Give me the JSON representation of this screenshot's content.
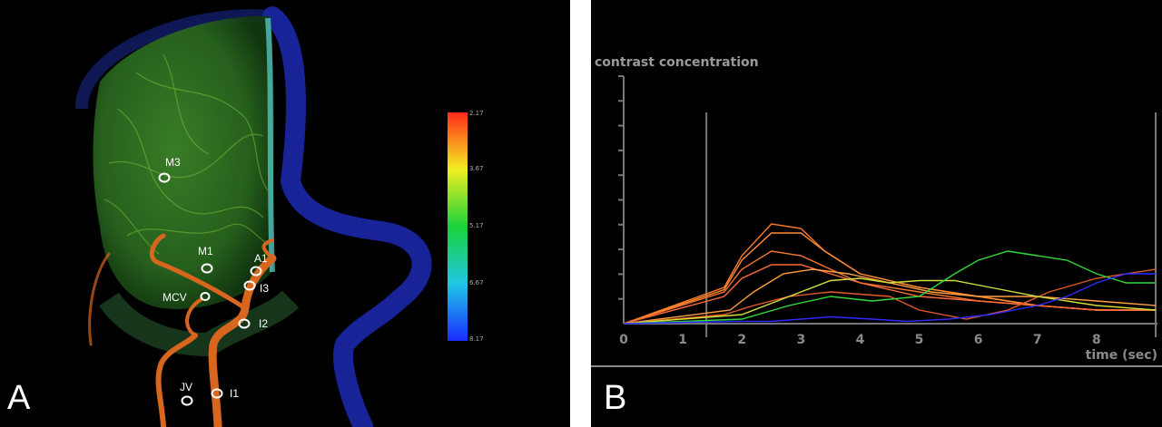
{
  "panel_a": {
    "letter": "A",
    "colorbar": {
      "ticks": [
        "2.17",
        "3.67",
        "5.17",
        "6.67",
        "8.17"
      ],
      "colors": [
        "#ff2a1a",
        "#f2ef20",
        "#19d23a",
        "#1fc7e6",
        "#1a2cff"
      ]
    },
    "rois": [
      {
        "label": "M3"
      },
      {
        "label": "M1"
      },
      {
        "label": "A1"
      },
      {
        "label": "I3"
      },
      {
        "label": "MCV"
      },
      {
        "label": "I2"
      },
      {
        "label": "JV"
      },
      {
        "label": "I1"
      }
    ]
  },
  "panel_b": {
    "letter": "B",
    "chart_data": {
      "type": "line",
      "title": "",
      "ylabel": "contrast concentration",
      "xlabel": "time (sec)",
      "xlim": [
        0,
        9
      ],
      "x_ticks": [
        "0",
        "1",
        "2",
        "3",
        "4",
        "5",
        "6",
        "7",
        "8"
      ],
      "markers_x": [
        1.4,
        9.0
      ],
      "series": [
        {
          "color": "#ff7a2a",
          "x": [
            0,
            1.7,
            2.0,
            2.5,
            3.0,
            3.4,
            4.0,
            5.0,
            6.0,
            7.0,
            8.0,
            9.0
          ],
          "y": [
            0,
            0.8,
            1.5,
            2.2,
            2.1,
            1.6,
            1.1,
            0.8,
            0.6,
            0.4,
            0.3,
            0.3
          ]
        },
        {
          "color": "#ff8c33",
          "x": [
            0,
            1.7,
            2.0,
            2.5,
            3.0,
            3.4,
            4.0,
            5.0,
            6.0,
            7.0,
            8.0,
            9.0
          ],
          "y": [
            0,
            0.75,
            1.4,
            2.0,
            2.0,
            1.6,
            1.1,
            0.8,
            0.6,
            0.4,
            0.3,
            0.3
          ]
        },
        {
          "color": "#f4752e",
          "x": [
            0,
            1.7,
            2.0,
            2.5,
            3.0,
            3.5,
            4.0,
            5.0,
            6.0,
            7.0,
            8.0,
            9.0
          ],
          "y": [
            0,
            0.7,
            1.2,
            1.6,
            1.5,
            1.2,
            0.9,
            0.7,
            0.5,
            0.4,
            0.3,
            0.3
          ]
        },
        {
          "color": "#ff6a3a",
          "x": [
            0,
            1.7,
            2.0,
            2.5,
            3.0,
            3.5,
            4.0,
            5.0,
            6.0,
            7.0,
            8.0,
            9.0
          ],
          "y": [
            0,
            0.6,
            1.0,
            1.3,
            1.3,
            1.1,
            0.9,
            0.6,
            0.5,
            0.4,
            0.3,
            0.3
          ]
        },
        {
          "color": "#ffa040",
          "x": [
            0,
            1.8,
            2.2,
            2.7,
            3.2,
            3.8,
            4.5,
            5.2,
            6.0,
            7.0,
            8.0,
            9.0
          ],
          "y": [
            0,
            0.3,
            0.7,
            1.1,
            1.2,
            1.1,
            0.9,
            0.7,
            0.6,
            0.6,
            0.5,
            0.4
          ]
        },
        {
          "color": "#e05a2a",
          "x": [
            0,
            1.7,
            2.2,
            2.8,
            3.5,
            4.5,
            5.0,
            5.8,
            6.5,
            7.2,
            8.0,
            9.0
          ],
          "y": [
            0,
            0.2,
            0.4,
            0.6,
            0.7,
            0.6,
            0.3,
            0.1,
            0.3,
            0.7,
            1.0,
            1.2
          ]
        },
        {
          "color": "#d2e03a",
          "x": [
            0,
            2.0,
            2.8,
            3.5,
            4.0,
            4.5,
            5.0,
            5.6,
            6.2,
            7.0,
            8.0,
            9.0
          ],
          "y": [
            0,
            0.2,
            0.6,
            0.95,
            1.0,
            0.9,
            0.95,
            0.95,
            0.8,
            0.6,
            0.4,
            0.3
          ]
        },
        {
          "color": "#31d93a",
          "x": [
            0,
            2.0,
            2.8,
            3.5,
            4.2,
            5.0,
            5.6,
            6.0,
            6.5,
            7.0,
            7.5,
            8.0,
            8.5,
            9.0
          ],
          "y": [
            0,
            0.1,
            0.4,
            0.6,
            0.5,
            0.6,
            1.1,
            1.4,
            1.6,
            1.5,
            1.4,
            1.1,
            0.9,
            0.9
          ]
        },
        {
          "color": "#2c2cff",
          "x": [
            0,
            1.8,
            2.5,
            3.0,
            3.5,
            4.2,
            4.8,
            5.5,
            6.2,
            7.0,
            7.5,
            8.0,
            8.5,
            9.0
          ],
          "y": [
            0,
            0.05,
            0.05,
            0.1,
            0.15,
            0.1,
            0.05,
            0.1,
            0.2,
            0.4,
            0.6,
            0.9,
            1.1,
            1.1
          ]
        }
      ]
    }
  }
}
